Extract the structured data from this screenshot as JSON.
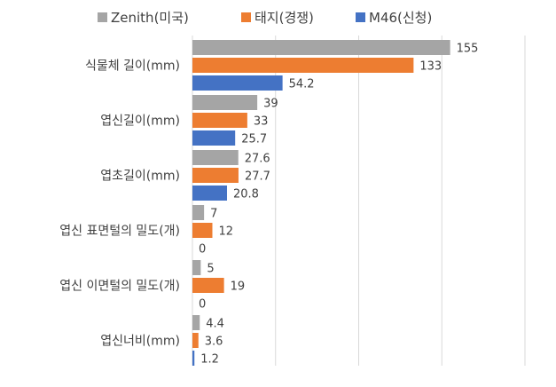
{
  "chart_data": {
    "type": "bar",
    "orientation": "horizontal",
    "legend_position": "top",
    "grid": true,
    "xlim": [
      0,
      200
    ],
    "categories": [
      "식물체 길이(mm)",
      "엽신길이(mm)",
      "엽초길이(mm)",
      "엽신 표면털의 밀도(개)",
      "엽신 이면털의 밀도(개)",
      "엽신너비(mm)"
    ],
    "series": [
      {
        "name": "Zenith(미국)",
        "color": "#a5a5a5",
        "values": [
          155,
          39,
          27.6,
          7,
          5,
          4.4
        ],
        "labels": [
          "155",
          "39",
          "27.6",
          "7",
          "5",
          "4.4"
        ]
      },
      {
        "name": "태지(경쟁)",
        "color": "#ed7d31",
        "values": [
          133,
          33,
          27.7,
          12,
          19,
          3.6
        ],
        "labels": [
          "133",
          "33",
          "27.7",
          "12",
          "19",
          "3.6"
        ]
      },
      {
        "name": "M46(신청)",
        "color": "#4472c4",
        "values": [
          54.2,
          25.7,
          20.8,
          0,
          0,
          1.2
        ],
        "labels": [
          "54.2",
          "25.7",
          "20.8",
          "0",
          "0",
          "1.2"
        ]
      }
    ]
  }
}
